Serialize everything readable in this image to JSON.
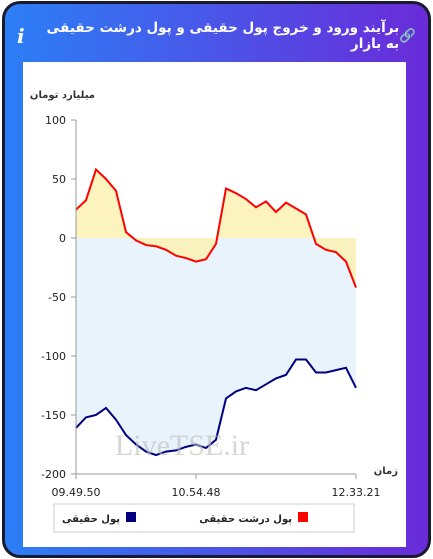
{
  "chart_data": {
    "type": "line",
    "title": "برآیند ورود و خروج پول حقیقی و پول درشت حقیقی به بازار",
    "y_label": "میلیارد تومان",
    "x_label": "زمان",
    "watermark": "LiveTSE.ir",
    "categories": [
      "09.49.50",
      null,
      null,
      null,
      null,
      null,
      null,
      null,
      null,
      null,
      null,
      null,
      "10.54.48",
      null,
      null,
      null,
      null,
      null,
      null,
      null,
      null,
      null,
      null,
      null,
      null,
      null,
      null,
      null,
      "12.33.21"
    ],
    "series": [
      {
        "name": "پول درشت حقیقی",
        "color": "#ff0000",
        "fill": "#fbf1b3",
        "values": [
          24,
          32,
          58,
          50,
          40,
          5,
          -2,
          -6,
          -7,
          -10,
          -15,
          -17,
          -20,
          -18,
          -5,
          42,
          38,
          33,
          26,
          31,
          22,
          30,
          25,
          20,
          -5,
          -10,
          -12,
          -20,
          -42
        ]
      },
      {
        "name": "پول حقیقی",
        "color": "#000080",
        "fill": "#e8f3fb",
        "values": [
          -161,
          -152,
          -150,
          -144,
          -154,
          -167,
          -175,
          -181,
          -184,
          -181,
          -180,
          -177,
          -175,
          -178,
          -171,
          -136,
          -130,
          -127,
          -129,
          -124,
          -119,
          -116,
          -103,
          -103,
          -114,
          -114,
          -112,
          -110,
          -127
        ]
      }
    ],
    "ylim": [
      -200,
      100
    ],
    "yticks": [
      100,
      50,
      0,
      -50,
      -100,
      -150,
      -200
    ],
    "grid": false
  }
}
